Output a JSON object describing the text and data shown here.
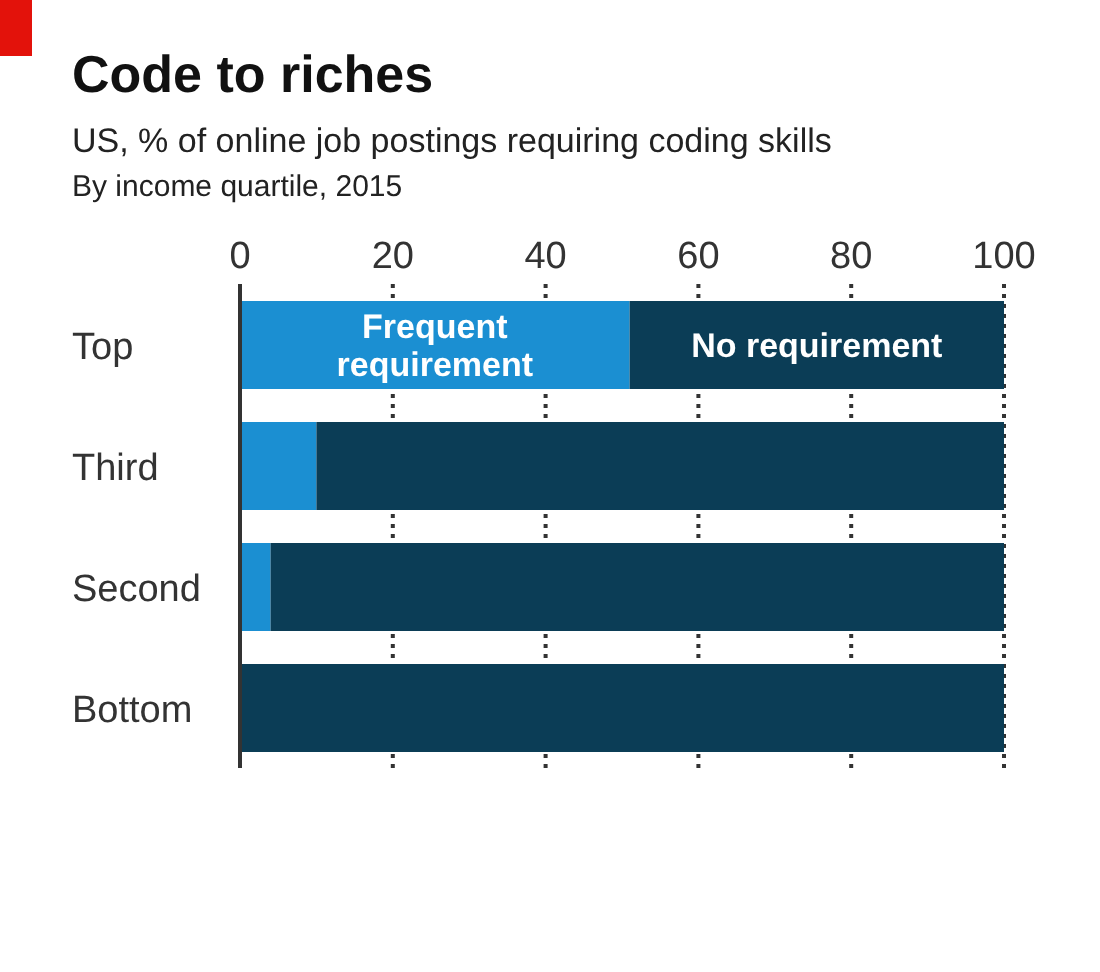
{
  "chart_data": {
    "type": "bar",
    "orientation": "horizontal",
    "stacked": true,
    "title": "Code to riches",
    "subtitle": "US, % of online job postings requiring coding skills\nBy income quartile, 2015",
    "categories": [
      "Top",
      "Third",
      "Second",
      "Bottom"
    ],
    "series": [
      {
        "name": "Frequent requirement",
        "color": "#1b8fd2",
        "values": [
          51,
          10,
          4,
          0
        ]
      },
      {
        "name": "No requirement",
        "color": "#0b3d56",
        "values": [
          49,
          90,
          96,
          100
        ]
      }
    ],
    "xlim": [
      0,
      100
    ],
    "xticks": [
      0,
      20,
      40,
      60,
      80,
      100
    ],
    "grid": "x"
  }
}
